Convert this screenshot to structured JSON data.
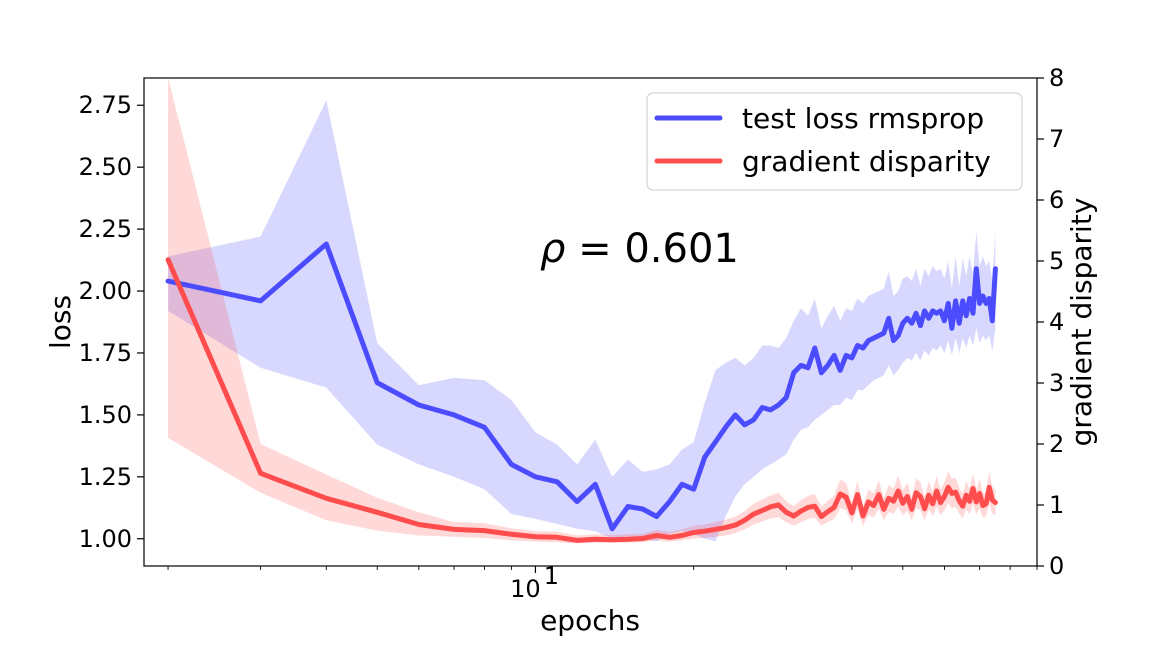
{
  "chart_data": {
    "type": "line",
    "x_scale": "log",
    "xlabel": "epochs",
    "ylabel": "loss",
    "y2label": "gradient disparity",
    "xlim": [
      1.8,
      90
    ],
    "ylim": [
      0.89,
      2.86
    ],
    "y2lim": [
      0,
      8
    ],
    "x_major_ticks": [
      {
        "value": 10,
        "base": "10",
        "exp": "1"
      }
    ],
    "yticks": [
      "1.00",
      "1.25",
      "1.50",
      "1.75",
      "2.00",
      "2.25",
      "2.50",
      "2.75"
    ],
    "y2ticks": [
      "0",
      "1",
      "2",
      "3",
      "4",
      "5",
      "6",
      "7",
      "8"
    ],
    "legend_location": "upper right",
    "annotation": {
      "symbol": "ρ",
      "text": " = 0.601"
    },
    "series": [
      {
        "name": "test loss rmsprop",
        "axis": "left",
        "color": "#4c4cff",
        "x": [
          2,
          3,
          4,
          5,
          6,
          7,
          8,
          9,
          10,
          11,
          12,
          13,
          14,
          15,
          16,
          17,
          18,
          19,
          20,
          21,
          22,
          23,
          24,
          25,
          26,
          27,
          28,
          29,
          30,
          31,
          32,
          33,
          34,
          35,
          36,
          37,
          38,
          39,
          40,
          41,
          42,
          43,
          44,
          45,
          46,
          47,
          48,
          49,
          50,
          51,
          52,
          53,
          54,
          55,
          56,
          57,
          58,
          59,
          60,
          61,
          62,
          63,
          64,
          65,
          66,
          67,
          68,
          69,
          70,
          71,
          72,
          73,
          74,
          75
        ],
        "y": [
          2.04,
          1.96,
          2.19,
          1.63,
          1.54,
          1.5,
          1.45,
          1.3,
          1.25,
          1.23,
          1.15,
          1.22,
          1.04,
          1.13,
          1.12,
          1.09,
          1.15,
          1.22,
          1.2,
          1.33,
          1.39,
          1.45,
          1.5,
          1.46,
          1.48,
          1.53,
          1.52,
          1.54,
          1.57,
          1.67,
          1.7,
          1.69,
          1.77,
          1.67,
          1.7,
          1.74,
          1.68,
          1.74,
          1.73,
          1.78,
          1.77,
          1.8,
          1.81,
          1.82,
          1.83,
          1.89,
          1.8,
          1.82,
          1.87,
          1.89,
          1.87,
          1.91,
          1.86,
          1.92,
          1.89,
          1.92,
          1.91,
          1.92,
          1.88,
          1.95,
          1.85,
          1.96,
          1.87,
          1.96,
          1.9,
          1.97,
          1.91,
          2.09,
          1.95,
          1.98,
          1.95,
          1.97,
          1.88,
          2.09
        ],
        "lower": [
          1.92,
          1.69,
          1.61,
          1.38,
          1.3,
          1.25,
          1.2,
          1.1,
          1.08,
          1.06,
          1.04,
          1.03,
          1.0,
          1.01,
          1.0,
          0.99,
          1.02,
          1.03,
          1.02,
          1.0,
          0.99,
          1.09,
          1.17,
          1.22,
          1.25,
          1.28,
          1.3,
          1.32,
          1.34,
          1.4,
          1.44,
          1.45,
          1.48,
          1.5,
          1.52,
          1.54,
          1.54,
          1.57,
          1.56,
          1.6,
          1.6,
          1.62,
          1.64,
          1.65,
          1.66,
          1.7,
          1.66,
          1.68,
          1.71,
          1.73,
          1.72,
          1.75,
          1.72,
          1.76,
          1.74,
          1.77,
          1.76,
          1.78,
          1.75,
          1.8,
          1.74,
          1.81,
          1.75,
          1.81,
          1.77,
          1.82,
          1.78,
          1.85,
          1.79,
          1.82,
          1.8,
          1.82,
          1.76,
          1.85
        ],
        "upper": [
          2.14,
          2.22,
          2.77,
          1.79,
          1.62,
          1.65,
          1.64,
          1.56,
          1.43,
          1.38,
          1.3,
          1.4,
          1.25,
          1.32,
          1.27,
          1.28,
          1.3,
          1.36,
          1.39,
          1.55,
          1.68,
          1.71,
          1.73,
          1.7,
          1.73,
          1.78,
          1.78,
          1.77,
          1.81,
          1.88,
          1.93,
          1.9,
          1.97,
          1.85,
          1.9,
          1.94,
          1.88,
          1.93,
          1.92,
          1.97,
          1.95,
          1.98,
          1.99,
          2.0,
          2.01,
          2.08,
          1.98,
          2.0,
          2.05,
          2.06,
          2.04,
          2.09,
          2.02,
          2.09,
          2.06,
          2.1,
          2.08,
          2.09,
          2.05,
          2.12,
          2.01,
          2.14,
          2.02,
          2.13,
          2.06,
          2.14,
          2.07,
          2.24,
          2.1,
          2.14,
          2.1,
          2.12,
          2.04,
          2.24
        ]
      },
      {
        "name": "gradient disparity",
        "axis": "right",
        "color": "#ff4c4c",
        "x": [
          2,
          3,
          4,
          5,
          6,
          7,
          8,
          9,
          10,
          11,
          12,
          13,
          14,
          15,
          16,
          17,
          18,
          19,
          20,
          21,
          22,
          23,
          24,
          25,
          26,
          27,
          28,
          29,
          30,
          31,
          32,
          33,
          34,
          35,
          36,
          37,
          38,
          39,
          40,
          41,
          42,
          43,
          44,
          45,
          46,
          47,
          48,
          49,
          50,
          51,
          52,
          53,
          54,
          55,
          56,
          57,
          58,
          59,
          60,
          61,
          62,
          63,
          64,
          65,
          66,
          67,
          68,
          69,
          70,
          71,
          72,
          73,
          74,
          75
        ],
        "y": [
          5.02,
          1.52,
          1.11,
          0.88,
          0.68,
          0.6,
          0.58,
          0.52,
          0.48,
          0.47,
          0.42,
          0.44,
          0.43,
          0.44,
          0.45,
          0.5,
          0.47,
          0.5,
          0.55,
          0.57,
          0.6,
          0.63,
          0.67,
          0.75,
          0.85,
          0.91,
          0.97,
          1.0,
          0.88,
          0.82,
          0.9,
          0.96,
          0.98,
          0.81,
          0.89,
          0.96,
          1.18,
          1.13,
          0.87,
          1.17,
          0.82,
          1.05,
          0.99,
          1.17,
          0.93,
          1.11,
          1.06,
          1.23,
          1.03,
          1.14,
          0.93,
          1.2,
          1.14,
          0.94,
          1.16,
          1.02,
          1.23,
          1.04,
          1.14,
          1.29,
          1.19,
          1.21,
          1.07,
          0.98,
          1.16,
          1.06,
          1.27,
          1.05,
          1.19,
          0.99,
          1.02,
          1.29,
          1.08,
          1.04
        ],
        "lower": [
          2.1,
          1.2,
          0.75,
          0.58,
          0.5,
          0.48,
          0.46,
          0.42,
          0.4,
          0.39,
          0.37,
          0.38,
          0.38,
          0.38,
          0.39,
          0.42,
          0.4,
          0.42,
          0.45,
          0.46,
          0.48,
          0.5,
          0.54,
          0.6,
          0.68,
          0.73,
          0.78,
          0.8,
          0.72,
          0.66,
          0.72,
          0.77,
          0.79,
          0.66,
          0.72,
          0.77,
          0.95,
          0.91,
          0.7,
          0.94,
          0.66,
          0.84,
          0.8,
          0.94,
          0.75,
          0.89,
          0.85,
          0.98,
          0.83,
          0.91,
          0.75,
          0.96,
          0.91,
          0.75,
          0.93,
          0.82,
          0.98,
          0.83,
          0.91,
          1.03,
          0.95,
          0.97,
          0.86,
          0.78,
          0.93,
          0.85,
          1.02,
          0.84,
          0.95,
          0.79,
          0.82,
          1.03,
          0.86,
          0.83
        ],
        "upper": [
          8.0,
          2.0,
          1.5,
          1.12,
          0.88,
          0.72,
          0.7,
          0.62,
          0.57,
          0.56,
          0.5,
          0.52,
          0.51,
          0.52,
          0.53,
          0.59,
          0.56,
          0.6,
          0.66,
          0.68,
          0.72,
          0.76,
          0.81,
          0.9,
          1.02,
          1.09,
          1.16,
          1.2,
          1.06,
          0.98,
          1.08,
          1.15,
          1.18,
          0.97,
          1.07,
          1.15,
          1.42,
          1.36,
          1.04,
          1.4,
          0.98,
          1.26,
          1.19,
          1.4,
          1.12,
          1.33,
          1.27,
          1.48,
          1.24,
          1.37,
          1.12,
          1.44,
          1.37,
          1.13,
          1.39,
          1.22,
          1.48,
          1.25,
          1.37,
          1.55,
          1.43,
          1.45,
          1.28,
          1.18,
          1.39,
          1.27,
          1.52,
          1.26,
          1.43,
          1.19,
          1.22,
          1.55,
          1.3,
          1.25
        ]
      }
    ]
  }
}
